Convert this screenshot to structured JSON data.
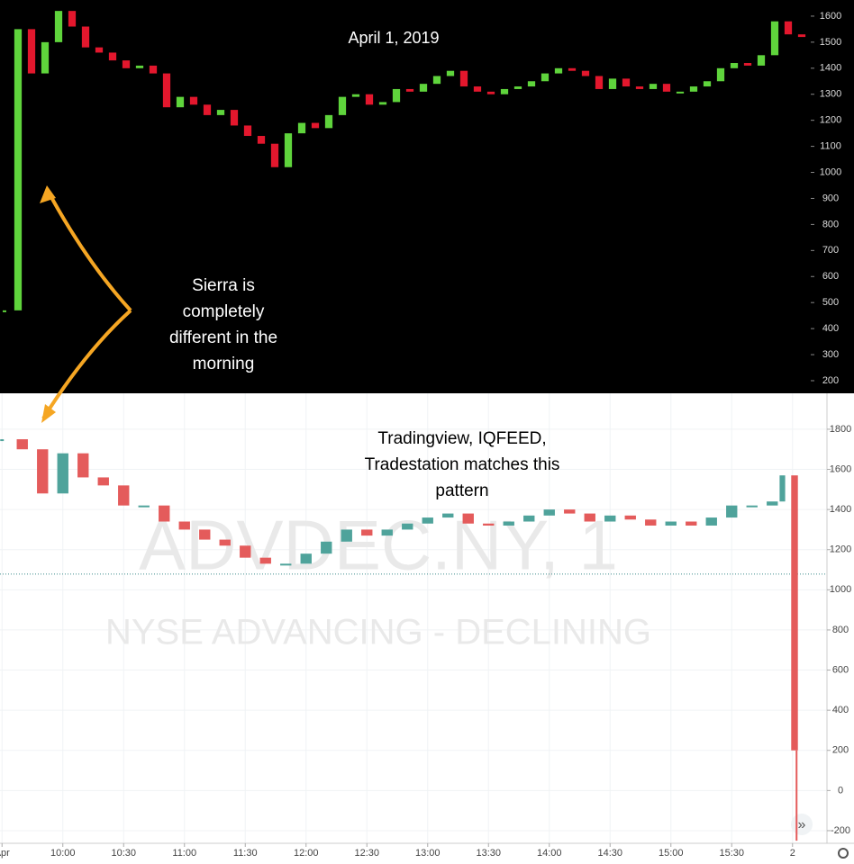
{
  "chart_data": [
    {
      "type": "candlestick",
      "title": "April 1, 2019",
      "annotation": [
        "Sierra is",
        "completely",
        "different in the",
        "morning"
      ],
      "values": [
        470,
        1550,
        1380,
        1500,
        1620,
        1560,
        1480,
        1460,
        1430,
        1400,
        1410,
        1380,
        1250,
        1290,
        1260,
        1220,
        1240,
        1180,
        1140,
        1110,
        1020,
        1150,
        1190,
        1170,
        1220,
        1290,
        1300,
        1260,
        1270,
        1320,
        1310,
        1340,
        1370,
        1390,
        1330,
        1310,
        1300,
        1320,
        1330,
        1350,
        1380,
        1400,
        1390,
        1370,
        1320,
        1360,
        1330,
        1320,
        1340,
        1310,
        1310,
        1330,
        1350,
        1400,
        1420,
        1410,
        1450,
        1580,
        1530,
        1520
      ],
      "colors": {
        "up": "#5fd43c",
        "down": "#e3172d"
      },
      "ylim": [
        155,
        1662
      ],
      "yticks": [
        200,
        300,
        400,
        500,
        600,
        700,
        800,
        900,
        1000,
        1100,
        1200,
        1300,
        1400,
        1500,
        1600
      ]
    },
    {
      "type": "candlestick",
      "title": "ADVDEC.NY, 1",
      "subtitle": "NYSE ADVANCING - DECLINING",
      "annotation": [
        "Tradingview, IQFEED,",
        "Tradestation matches this",
        "pattern"
      ],
      "x": [
        570,
        580,
        590,
        600,
        610,
        620,
        630,
        640,
        650,
        660,
        670,
        680,
        690,
        700,
        710,
        720,
        730,
        740,
        750,
        760,
        770,
        780,
        790,
        800,
        810,
        820,
        830,
        840,
        850,
        860,
        870,
        880,
        890,
        900,
        910,
        920,
        930,
        940,
        950,
        955,
        961,
        962
      ],
      "values": [
        1750,
        1700,
        1480,
        1680,
        1560,
        1520,
        1420,
        1420,
        1340,
        1300,
        1250,
        1220,
        1160,
        1130,
        1130,
        1180,
        1240,
        1300,
        1270,
        1300,
        1330,
        1360,
        1380,
        1330,
        1320,
        1340,
        1370,
        1400,
        1380,
        1340,
        1370,
        1350,
        1320,
        1340,
        1320,
        1360,
        1420,
        1420,
        1440,
        1570,
        200,
        -250
      ],
      "colors": {
        "up": "#4fa39b",
        "down": "#e45b5b"
      },
      "xlim": [
        569,
        977
      ],
      "xticks": [
        {
          "value": 570,
          "label": "Apr"
        },
        {
          "value": 600,
          "label": "10:00"
        },
        {
          "value": 630,
          "label": "10:30"
        },
        {
          "value": 660,
          "label": "11:00"
        },
        {
          "value": 690,
          "label": "11:30"
        },
        {
          "value": 720,
          "label": "12:00"
        },
        {
          "value": 750,
          "label": "12:30"
        },
        {
          "value": 780,
          "label": "13:00"
        },
        {
          "value": 810,
          "label": "13:30"
        },
        {
          "value": 840,
          "label": "14:00"
        },
        {
          "value": 870,
          "label": "14:30"
        },
        {
          "value": 900,
          "label": "15:00"
        },
        {
          "value": 930,
          "label": "15:30"
        },
        {
          "value": 960,
          "label": "2"
        }
      ],
      "ylim": [
        -263,
        1979
      ],
      "yticks": [
        -200,
        0,
        200,
        400,
        600,
        800,
        1000,
        1200,
        1400,
        1600,
        1800
      ],
      "grid": true,
      "reference_line": 1078
    }
  ]
}
